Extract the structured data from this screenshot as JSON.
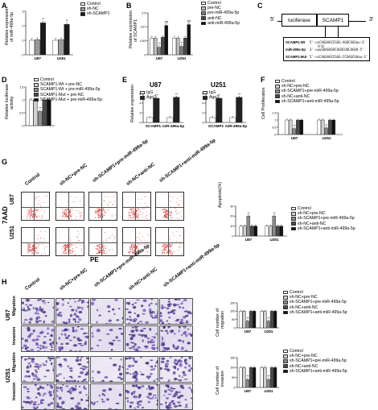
{
  "panels": {
    "A": {
      "letter": "A",
      "ylabel": "Relative expression\nof miR-499a-5p",
      "legend": [
        {
          "name": "Control",
          "color": "#ffffff"
        },
        {
          "name": "sh-NC",
          "color": "#9a9a9a"
        },
        {
          "name": "sh-SCAMP1",
          "color": "#1a1a1a"
        }
      ],
      "stars": "**"
    },
    "B": {
      "letter": "B",
      "ylabel": "Relative expression\nof SCAMP1",
      "legend": [
        {
          "name": "Control",
          "color": "#ffffff"
        },
        {
          "name": "pre-NC",
          "color": "#bdbdbd"
        },
        {
          "name": "pre-miR-499a-5p",
          "color": "#7d7d7d"
        },
        {
          "name": "anti-NC",
          "color": "#4a4a4a"
        },
        {
          "name": "anti-miR-499a-5p",
          "color": "#111111"
        }
      ],
      "stars": "**",
      "hash": "##"
    },
    "C": {
      "letter": "C",
      "luciferase": "luciferase",
      "scamp1": "SCAMP1",
      "five": "5'",
      "three": "3'",
      "rows": [
        {
          "label": "SCAMP1-Wt",
          "seq": "5'-ucCAGGAGCCGGG-AGUCGGGau-3'"
        },
        {
          "label": "miR-499a-5p",
          "seq": "3'-uuuGUAGUGACAGUCUUCAGUU-5'"
        },
        {
          "label": "SCAMP1-Mut",
          "seq": "5'-ucCAGGAGCCGGG-CCGAGCGAau-3'"
        }
      ]
    },
    "D": {
      "letter": "D",
      "ylabel": "Relative luciferase\nactivity",
      "legend": [
        {
          "name": "Control",
          "color": "#ffffff"
        },
        {
          "name": "SCAMP1-Wt + pre-NC",
          "color": "#d0d0d0"
        },
        {
          "name": "SCAMP1-Wt + pre-miR-499a-5p",
          "color": "#8a8a8a"
        },
        {
          "name": "SCAMP1-Mut + pre-NC",
          "color": "#4a4a4a"
        },
        {
          "name": "SCAMP1-Mut + pre-miR-499a-5p",
          "color": "#111111"
        }
      ],
      "stars": "**"
    },
    "E": {
      "letter": "E",
      "ylabel": "Relative expression",
      "titles": [
        "U87",
        "U251"
      ],
      "legend": [
        {
          "name": "IgG",
          "color": "#ffffff"
        },
        {
          "name": "Ago2",
          "color": "#222222"
        }
      ],
      "stars": "**"
    },
    "F": {
      "letter": "F",
      "ylabel": "Cell Proliferation",
      "legend": [
        {
          "name": "Control",
          "color": "#ffffff"
        },
        {
          "name": "sh-NC+pre-NC",
          "color": "#d0d0d0"
        },
        {
          "name": "sh-SCAMP1+pre-miR-499a-5p",
          "color": "#8a8a8a"
        },
        {
          "name": "sh-NC+anti-NC",
          "color": "#4a4a4a"
        },
        {
          "name": "sh-SCAMP1+anti-miR-499a-5p",
          "color": "#111111"
        }
      ],
      "stars": "**"
    },
    "G": {
      "letter": "G",
      "columns": [
        "Control",
        "sh-NC+pre-NC",
        "sh-SCAMP1+pre-miR-499a-5p",
        "sh-NC+anti-NC",
        "sh-SCAMP1+anti-miR-499a-5p"
      ],
      "rows": [
        "U87",
        "U251"
      ],
      "xaxis": "PE",
      "yaxis": "7AAD",
      "ylabel": "Apoptosis(%)",
      "legend": [
        {
          "name": "Control",
          "color": "#ffffff"
        },
        {
          "name": "sh-NC+pre-NC",
          "color": "#d0d0d0"
        },
        {
          "name": "sh-SCAMP1+pre-miR-499a-5p",
          "color": "#8a8a8a"
        },
        {
          "name": "sh-NC+anti-NC",
          "color": "#4a4a4a"
        },
        {
          "name": "sh-SCAMP1+anti-miR-499a-5p",
          "color": "#111111"
        }
      ],
      "stars": "**"
    },
    "H": {
      "letter": "H",
      "columns": [
        "Control",
        "sh-NC+pre-NC",
        "sh-SCAMP1+pre-miR-499a-5p",
        "sh-NC+anti-NC",
        "sh-SCAMP1+anti-miR-499a-5p"
      ],
      "groups": [
        {
          "cell": "U87",
          "rows": [
            "Migration",
            "Invasion"
          ]
        },
        {
          "cell": "U251",
          "rows": [
            "Migration",
            "Invasion"
          ]
        }
      ],
      "ylabel_mig": "Cell number of\nmigration",
      "ylabel_inv": "Cell number of\ninvasion",
      "legend": [
        {
          "name": "Control",
          "color": "#ffffff"
        },
        {
          "name": "sh-NC+pre-NC",
          "color": "#d0d0d0"
        },
        {
          "name": "sh-SCAMP1+pre-miR-499a-5p",
          "color": "#8a8a8a"
        },
        {
          "name": "sh-NC+anti-NC",
          "color": "#4a4a4a"
        },
        {
          "name": "sh-SCAMP1+anti-miR-499a-5p",
          "color": "#111111"
        }
      ],
      "stars": "**"
    }
  },
  "chart_data": [
    {
      "id": "A",
      "type": "bar",
      "categories": [
        "U87",
        "U251"
      ],
      "series": [
        {
          "name": "Control",
          "values": [
            1.0,
            1.0
          ]
        },
        {
          "name": "sh-NC",
          "values": [
            1.05,
            1.05
          ]
        },
        {
          "name": "sh-SCAMP1",
          "values": [
            2.2,
            2.1
          ]
        }
      ],
      "ylim": [
        0,
        3
      ]
    },
    {
      "id": "B",
      "type": "bar",
      "categories": [
        "U87",
        "U251"
      ],
      "series": [
        {
          "name": "Control",
          "values": [
            1.0,
            1.0
          ]
        },
        {
          "name": "pre-NC",
          "values": [
            1.0,
            1.0
          ]
        },
        {
          "name": "pre-miR-499a-5p",
          "values": [
            0.45,
            0.5
          ]
        },
        {
          "name": "anti-NC",
          "values": [
            1.05,
            1.0
          ]
        },
        {
          "name": "anti-miR-499a-5p",
          "values": [
            1.75,
            1.8
          ]
        }
      ],
      "ylim": [
        0,
        2.5
      ]
    },
    {
      "id": "D",
      "type": "bar",
      "categories": [
        ""
      ],
      "series": [
        {
          "name": "Control",
          "values": [
            1.0
          ]
        },
        {
          "name": "SCAMP1-Wt + pre-NC",
          "values": [
            1.0
          ]
        },
        {
          "name": "SCAMP1-Wt + pre-miR-499a-5p",
          "values": [
            0.55
          ]
        },
        {
          "name": "SCAMP1-Mut + pre-NC",
          "values": [
            1.0
          ]
        },
        {
          "name": "SCAMP1-Mut + pre-miR-499a-5p",
          "values": [
            1.0
          ]
        }
      ],
      "ylim": [
        0,
        1.5
      ]
    },
    {
      "id": "E1",
      "type": "bar",
      "title": "U87",
      "categories": [
        "SCAMP1",
        "miR-499a-5p"
      ],
      "series": [
        {
          "name": "IgG",
          "values": [
            1.0,
            1.0
          ]
        },
        {
          "name": "Ago2",
          "values": [
            5.0,
            5.2
          ]
        }
      ],
      "ylim": [
        0,
        6
      ]
    },
    {
      "id": "E2",
      "type": "bar",
      "title": "U251",
      "categories": [
        "SCAMP1",
        "miR-499a-5p"
      ],
      "series": [
        {
          "name": "IgG",
          "values": [
            1.0,
            1.0
          ]
        },
        {
          "name": "Ago2",
          "values": [
            5.0,
            5.2
          ]
        }
      ],
      "ylim": [
        0,
        6
      ]
    },
    {
      "id": "F",
      "type": "bar",
      "categories": [
        "U87",
        "U251"
      ],
      "series": [
        {
          "name": "Control",
          "values": [
            1.0,
            1.0
          ]
        },
        {
          "name": "sh-NC+pre-NC",
          "values": [
            1.0,
            1.0
          ]
        },
        {
          "name": "sh-SCAMP1+pre-miR-499a-5p",
          "values": [
            0.4,
            0.45
          ]
        },
        {
          "name": "sh-NC+anti-NC",
          "values": [
            1.0,
            1.0
          ]
        },
        {
          "name": "sh-SCAMP1+anti-miR-499a-5p",
          "values": [
            1.0,
            1.0
          ]
        }
      ],
      "ylim": [
        0,
        1.5
      ]
    },
    {
      "id": "G",
      "type": "bar",
      "categories": [
        "U87",
        "U251"
      ],
      "series": [
        {
          "name": "Control",
          "values": [
            10,
            10
          ]
        },
        {
          "name": "sh-NC+pre-NC",
          "values": [
            10,
            10
          ]
        },
        {
          "name": "sh-SCAMP1+pre-miR-499a-5p",
          "values": [
            20,
            20
          ]
        },
        {
          "name": "sh-NC+anti-NC",
          "values": [
            10,
            10
          ]
        },
        {
          "name": "sh-SCAMP1+anti-miR-499a-5p",
          "values": [
            10,
            10
          ]
        }
      ],
      "ylim": [
        0,
        30
      ]
    },
    {
      "id": "H1",
      "type": "bar",
      "categories": [
        "U87",
        "U251"
      ],
      "series": [
        {
          "name": "Control",
          "values": [
            100,
            100
          ]
        },
        {
          "name": "sh-NC+pre-NC",
          "values": [
            100,
            100
          ]
        },
        {
          "name": "sh-SCAMP1+pre-miR-499a-5p",
          "values": [
            40,
            40
          ]
        },
        {
          "name": "sh-NC+anti-NC",
          "values": [
            100,
            100
          ]
        },
        {
          "name": "sh-SCAMP1+anti-miR-499a-5p",
          "values": [
            100,
            100
          ]
        }
      ],
      "ylim": [
        0,
        150
      ]
    },
    {
      "id": "H2",
      "type": "bar",
      "categories": [
        "U87",
        "U251"
      ],
      "series": [
        {
          "name": "Control",
          "values": [
            100,
            100
          ]
        },
        {
          "name": "sh-NC+pre-NC",
          "values": [
            100,
            100
          ]
        },
        {
          "name": "sh-SCAMP1+pre-miR-499a-5p",
          "values": [
            40,
            40
          ]
        },
        {
          "name": "sh-NC+anti-NC",
          "values": [
            100,
            100
          ]
        },
        {
          "name": "sh-SCAMP1+anti-miR-499a-5p",
          "values": [
            100,
            100
          ]
        }
      ],
      "ylim": [
        0,
        150
      ]
    }
  ]
}
